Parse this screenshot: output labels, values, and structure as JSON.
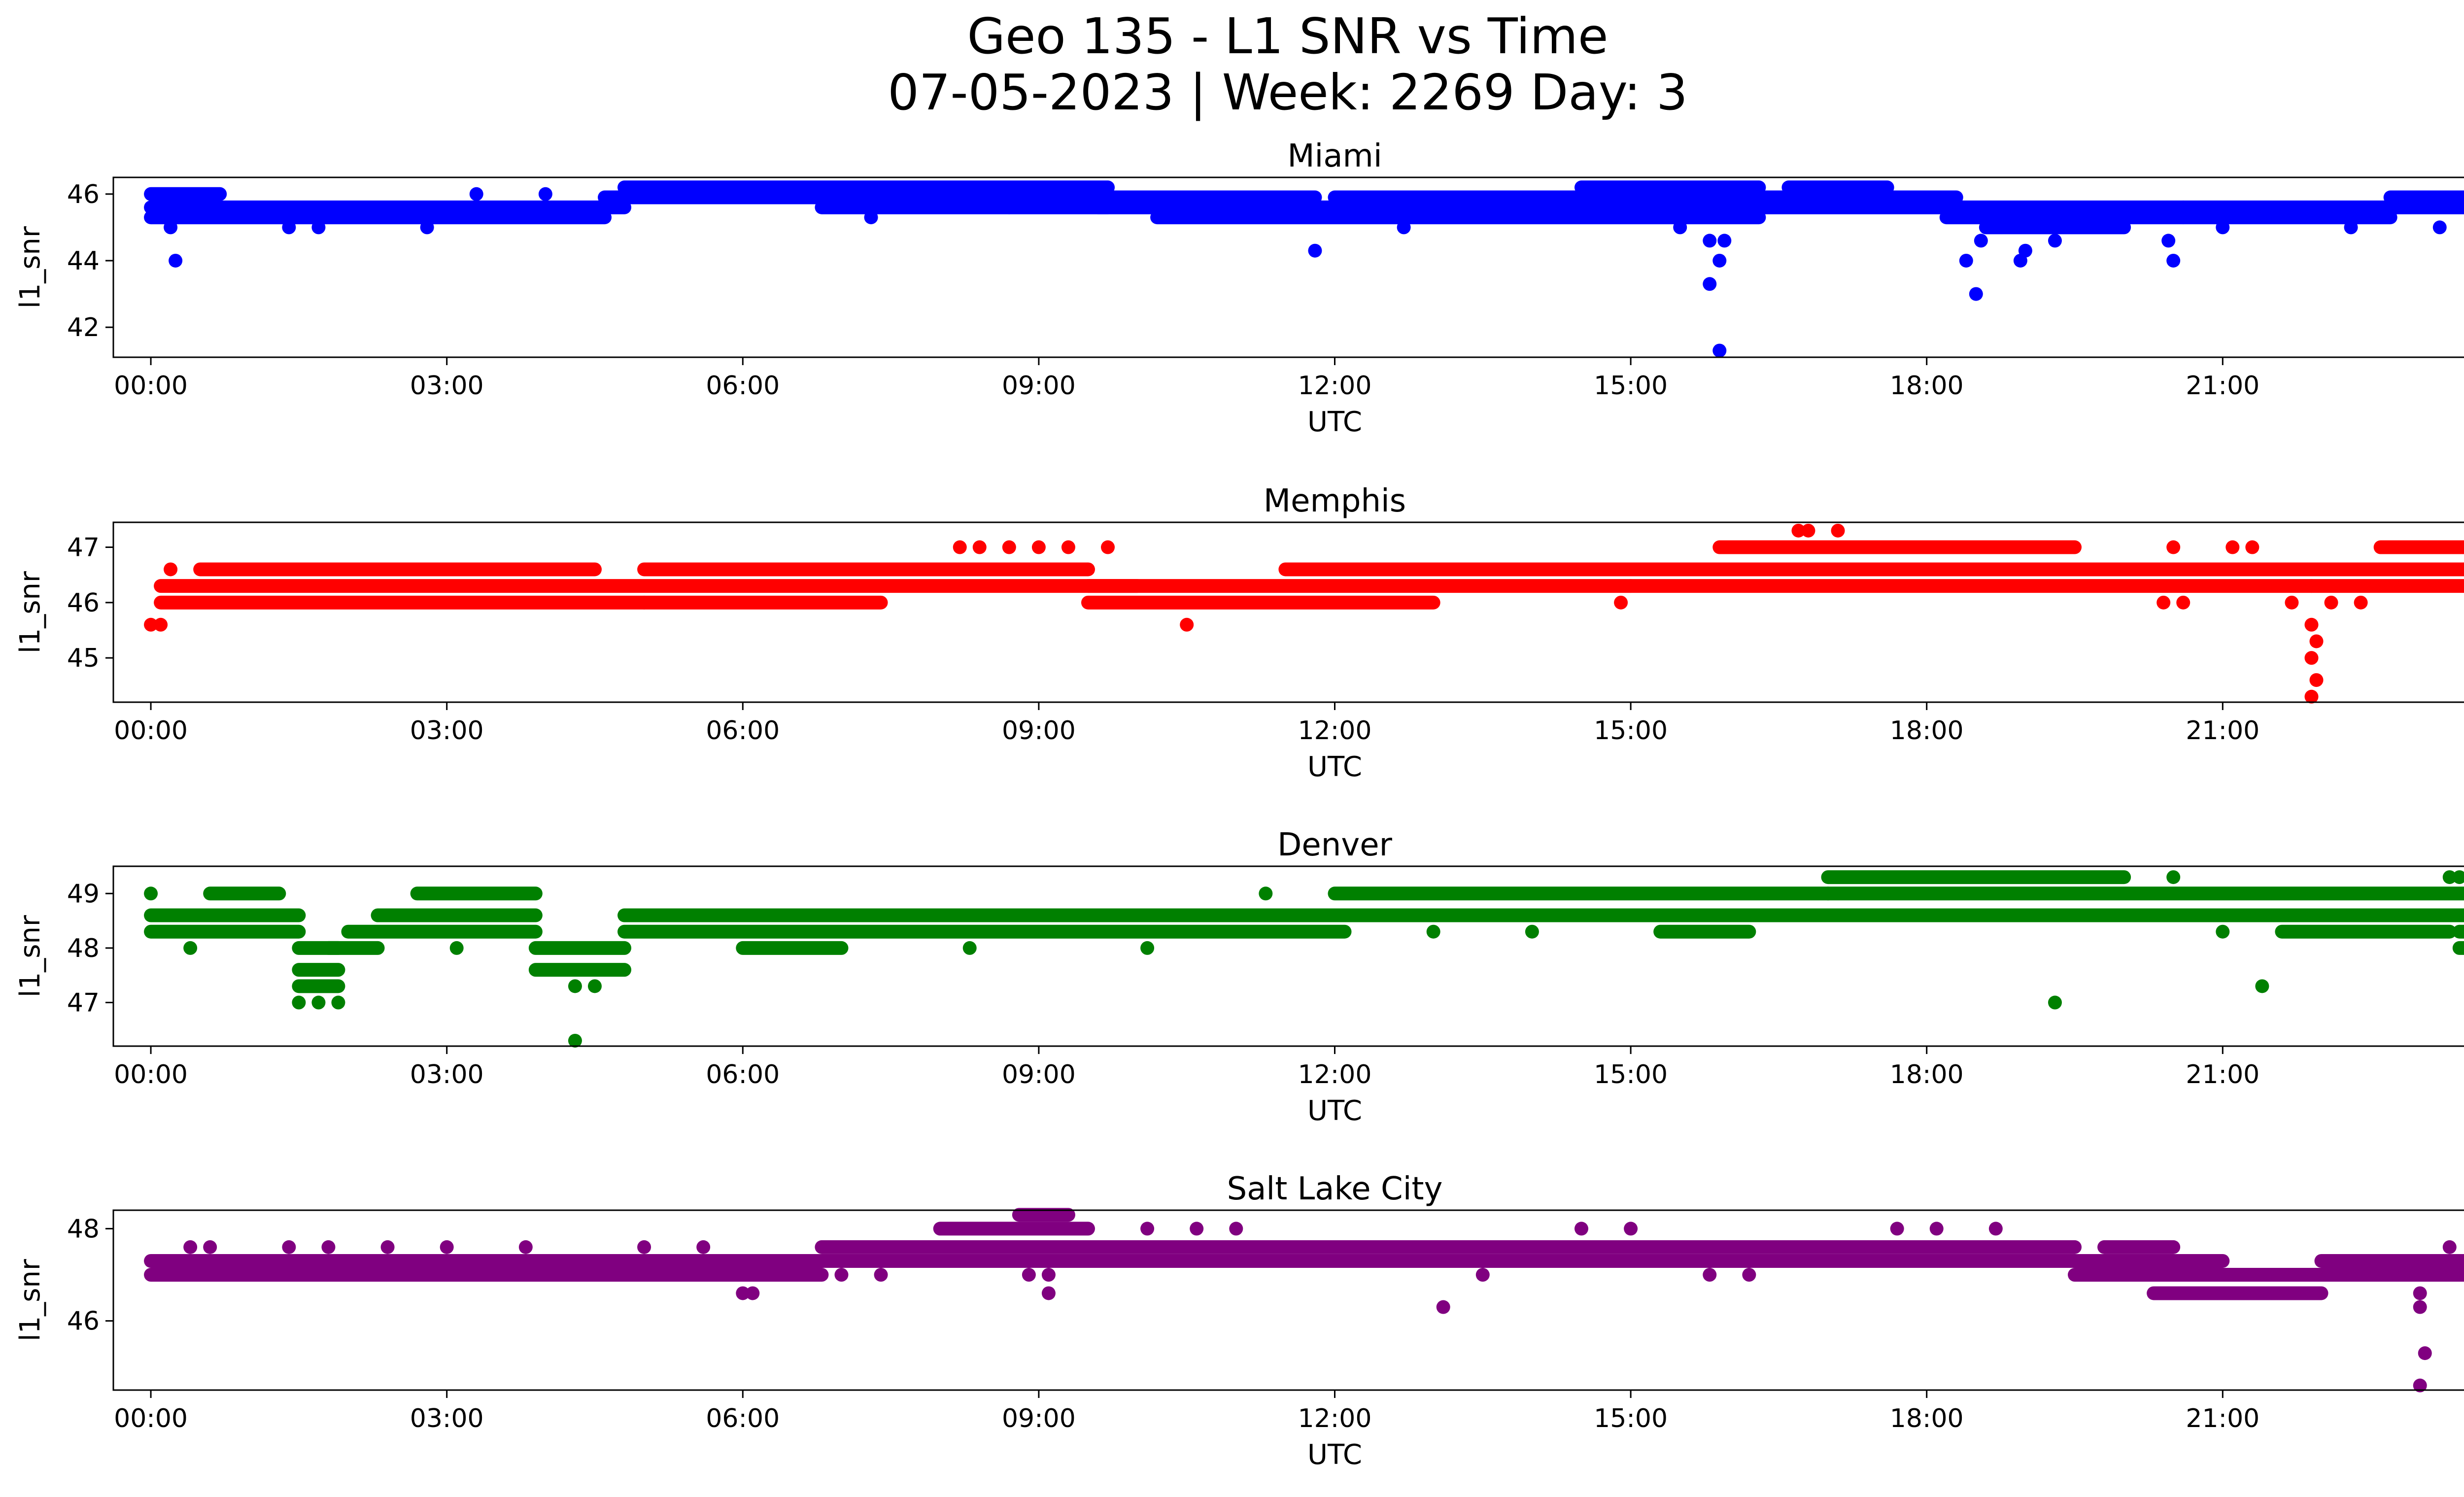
{
  "chart": {
    "title_line1": "Geo 135 - L1 SNR vs Time",
    "title_line2": "07-05-2023 | Week: 2269 Day: 3"
  },
  "chart_data": [
    {
      "type": "scatter",
      "title": "Miami",
      "xlabel": "UTC",
      "ylabel": "l1_snr",
      "color": "#0000ff",
      "xlim": [
        -0.38,
        24.38
      ],
      "ylim": [
        41.1,
        46.5
      ],
      "xticks": [
        "00:00",
        "03:00",
        "06:00",
        "09:00",
        "12:00",
        "15:00",
        "18:00",
        "21:00",
        "00:00"
      ],
      "yticks": [
        42,
        44,
        46
      ],
      "bands": [
        {
          "x0": 0.0,
          "x1": 4.6,
          "y": 45.3
        },
        {
          "x0": 0.0,
          "x1": 4.8,
          "y": 45.6
        },
        {
          "x0": 0.0,
          "x1": 0.7,
          "y": 46.0
        },
        {
          "x0": 4.6,
          "x1": 6.8,
          "y": 45.9
        },
        {
          "x0": 4.8,
          "x1": 9.7,
          "y": 46.2
        },
        {
          "x0": 4.8,
          "x1": 11.8,
          "y": 45.9
        },
        {
          "x0": 6.8,
          "x1": 9.7,
          "y": 45.6
        },
        {
          "x0": 9.6,
          "x1": 16.3,
          "y": 45.6
        },
        {
          "x0": 10.2,
          "x1": 16.3,
          "y": 45.3
        },
        {
          "x0": 12.0,
          "x1": 16.3,
          "y": 45.9
        },
        {
          "x0": 14.5,
          "x1": 16.3,
          "y": 46.2
        },
        {
          "x0": 16.3,
          "x1": 18.3,
          "y": 45.9
        },
        {
          "x0": 16.6,
          "x1": 17.6,
          "y": 46.2
        },
        {
          "x0": 16.3,
          "x1": 18.3,
          "y": 45.6
        },
        {
          "x0": 18.2,
          "x1": 20.6,
          "y": 45.6
        },
        {
          "x0": 18.2,
          "x1": 20.6,
          "y": 45.3
        },
        {
          "x0": 18.6,
          "x1": 20.0,
          "y": 45.0
        },
        {
          "x0": 20.6,
          "x1": 22.7,
          "y": 45.6
        },
        {
          "x0": 20.6,
          "x1": 22.7,
          "y": 45.3
        },
        {
          "x0": 22.7,
          "x1": 24.0,
          "y": 45.6
        },
        {
          "x0": 22.7,
          "x1": 24.0,
          "y": 45.9
        },
        {
          "x0": 23.6,
          "x1": 24.0,
          "y": 46.2
        }
      ],
      "points": [
        [
          0.25,
          44.0
        ],
        [
          0.2,
          45.0
        ],
        [
          1.4,
          45.0
        ],
        [
          1.7,
          45.0
        ],
        [
          2.8,
          45.0
        ],
        [
          3.3,
          46.0
        ],
        [
          4.0,
          46.0
        ],
        [
          8.7,
          45.6
        ],
        [
          7.3,
          45.3
        ],
        [
          11.8,
          44.3
        ],
        [
          12.7,
          45.0
        ],
        [
          15.8,
          44.6
        ],
        [
          15.8,
          43.3
        ],
        [
          15.9,
          44.0
        ],
        [
          15.95,
          44.6
        ],
        [
          15.9,
          41.3
        ],
        [
          15.5,
          45.0
        ],
        [
          18.4,
          44.0
        ],
        [
          18.55,
          44.6
        ],
        [
          18.5,
          43.0
        ],
        [
          18.95,
          44.0
        ],
        [
          19.0,
          44.3
        ],
        [
          20.5,
          44.0
        ],
        [
          20.45,
          44.6
        ],
        [
          21.0,
          45.0
        ],
        [
          22.3,
          45.0
        ],
        [
          23.2,
          45.0
        ],
        [
          19.3,
          44.6
        ]
      ]
    },
    {
      "type": "scatter",
      "title": "Memphis",
      "xlabel": "UTC",
      "ylabel": "l1_snr",
      "color": "#ff0000",
      "xlim": [
        -0.38,
        24.38
      ],
      "ylim": [
        44.2,
        47.45
      ],
      "xticks": [
        "00:00",
        "03:00",
        "06:00",
        "09:00",
        "12:00",
        "15:00",
        "18:00",
        "21:00",
        "00:00"
      ],
      "yticks": [
        45,
        46,
        47
      ],
      "bands": [
        {
          "x0": 0.1,
          "x1": 5.0,
          "y": 46.0
        },
        {
          "x0": 0.1,
          "x1": 10.0,
          "y": 46.3
        },
        {
          "x0": 0.5,
          "x1": 4.5,
          "y": 46.6
        },
        {
          "x0": 5.0,
          "x1": 7.4,
          "y": 46.0
        },
        {
          "x0": 5.0,
          "x1": 9.5,
          "y": 46.6
        },
        {
          "x0": 9.5,
          "x1": 13.0,
          "y": 46.0
        },
        {
          "x0": 9.5,
          "x1": 15.0,
          "y": 46.3
        },
        {
          "x0": 11.5,
          "x1": 16.2,
          "y": 46.6
        },
        {
          "x0": 15.0,
          "x1": 21.9,
          "y": 46.6
        },
        {
          "x0": 15.0,
          "x1": 21.9,
          "y": 46.3
        },
        {
          "x0": 15.9,
          "x1": 19.5,
          "y": 47.0
        },
        {
          "x0": 21.9,
          "x1": 24.0,
          "y": 46.6
        },
        {
          "x0": 21.9,
          "x1": 24.0,
          "y": 46.3
        },
        {
          "x0": 22.6,
          "x1": 24.0,
          "y": 47.0
        }
      ],
      "points": [
        [
          0.0,
          45.6
        ],
        [
          0.1,
          45.6
        ],
        [
          0.2,
          46.6
        ],
        [
          10.5,
          45.6
        ],
        [
          8.2,
          47.0
        ],
        [
          8.4,
          47.0
        ],
        [
          8.7,
          47.0
        ],
        [
          9.0,
          47.0
        ],
        [
          9.3,
          47.0
        ],
        [
          9.7,
          47.0
        ],
        [
          14.9,
          46.0
        ],
        [
          16.7,
          47.3
        ],
        [
          16.8,
          47.3
        ],
        [
          17.1,
          47.3
        ],
        [
          21.9,
          45.6
        ],
        [
          21.95,
          45.3
        ],
        [
          21.9,
          45.0
        ],
        [
          21.95,
          44.6
        ],
        [
          21.9,
          44.3
        ],
        [
          21.7,
          46.0
        ],
        [
          22.1,
          46.0
        ],
        [
          22.4,
          46.0
        ],
        [
          24.0,
          47.3
        ],
        [
          20.5,
          47.0
        ],
        [
          21.1,
          47.0
        ],
        [
          21.3,
          47.0
        ],
        [
          20.6,
          46.0
        ],
        [
          20.4,
          46.0
        ]
      ]
    },
    {
      "type": "scatter",
      "title": "Denver",
      "xlabel": "UTC",
      "ylabel": "l1_snr",
      "color": "#008000",
      "xlim": [
        -0.38,
        24.38
      ],
      "ylim": [
        46.2,
        49.5
      ],
      "xticks": [
        "00:00",
        "03:00",
        "06:00",
        "09:00",
        "12:00",
        "15:00",
        "18:00",
        "21:00",
        "00:00"
      ],
      "yticks": [
        47,
        48,
        49
      ],
      "bands": [
        {
          "x0": 0.0,
          "x1": 1.5,
          "y": 48.3
        },
        {
          "x0": 0.0,
          "x1": 1.5,
          "y": 48.6
        },
        {
          "x0": 0.6,
          "x1": 1.3,
          "y": 49.0
        },
        {
          "x0": 1.5,
          "x1": 1.9,
          "y": 47.3
        },
        {
          "x0": 1.5,
          "x1": 1.9,
          "y": 47.6
        },
        {
          "x0": 1.5,
          "x1": 1.9,
          "y": 48.0
        },
        {
          "x0": 1.8,
          "x1": 2.3,
          "y": 48.0
        },
        {
          "x0": 2.0,
          "x1": 3.9,
          "y": 48.3
        },
        {
          "x0": 2.3,
          "x1": 3.9,
          "y": 48.6
        },
        {
          "x0": 2.7,
          "x1": 3.9,
          "y": 49.0
        },
        {
          "x0": 3.9,
          "x1": 4.8,
          "y": 47.6
        },
        {
          "x0": 3.9,
          "x1": 4.8,
          "y": 48.0
        },
        {
          "x0": 4.8,
          "x1": 12.1,
          "y": 48.3
        },
        {
          "x0": 4.8,
          "x1": 17.0,
          "y": 48.6
        },
        {
          "x0": 6.0,
          "x1": 7.0,
          "y": 48.0
        },
        {
          "x0": 12.0,
          "x1": 17.0,
          "y": 49.0
        },
        {
          "x0": 15.3,
          "x1": 16.2,
          "y": 48.3
        },
        {
          "x0": 17.0,
          "x1": 20.0,
          "y": 49.3
        },
        {
          "x0": 17.0,
          "x1": 24.0,
          "y": 49.0
        },
        {
          "x0": 17.0,
          "x1": 24.0,
          "y": 48.6
        },
        {
          "x0": 21.6,
          "x1": 23.3,
          "y": 48.3
        },
        {
          "x0": 23.4,
          "x1": 23.9,
          "y": 48.0
        },
        {
          "x0": 23.4,
          "x1": 23.9,
          "y": 48.3
        }
      ],
      "points": [
        [
          0.0,
          49.0
        ],
        [
          0.4,
          48.0
        ],
        [
          1.5,
          47.0
        ],
        [
          1.7,
          47.0
        ],
        [
          1.9,
          47.0
        ],
        [
          3.1,
          48.0
        ],
        [
          4.3,
          47.3
        ],
        [
          4.5,
          47.3
        ],
        [
          4.3,
          46.3
        ],
        [
          8.3,
          48.0
        ],
        [
          10.1,
          48.0
        ],
        [
          13.0,
          48.3
        ],
        [
          14.0,
          48.3
        ],
        [
          11.3,
          49.0
        ],
        [
          19.3,
          47.0
        ],
        [
          21.4,
          47.3
        ],
        [
          21.0,
          48.3
        ],
        [
          23.3,
          49.3
        ],
        [
          23.4,
          49.3
        ],
        [
          24.0,
          49.0
        ],
        [
          20.5,
          49.3
        ],
        [
          18.0,
          48.6
        ],
        [
          18.8,
          48.6
        ]
      ]
    },
    {
      "type": "scatter",
      "title": "Salt Lake City",
      "xlabel": "UTC",
      "ylabel": "l1_snr",
      "color": "#800080",
      "xlim": [
        -0.38,
        24.38
      ],
      "ylim": [
        44.5,
        48.4
      ],
      "xticks": [
        "00:00",
        "03:00",
        "06:00",
        "09:00",
        "12:00",
        "15:00",
        "18:00",
        "21:00",
        "00:00"
      ],
      "yticks": [
        46,
        48
      ],
      "bands": [
        {
          "x0": 0.0,
          "x1": 6.8,
          "y": 47.0
        },
        {
          "x0": 0.0,
          "x1": 6.8,
          "y": 47.3
        },
        {
          "x0": 6.8,
          "x1": 8.5,
          "y": 47.3
        },
        {
          "x0": 6.8,
          "x1": 19.5,
          "y": 47.6
        },
        {
          "x0": 8.5,
          "x1": 19.5,
          "y": 47.3
        },
        {
          "x0": 8.0,
          "x1": 9.5,
          "y": 48.0
        },
        {
          "x0": 8.8,
          "x1": 9.3,
          "y": 48.3
        },
        {
          "x0": 19.5,
          "x1": 21.0,
          "y": 47.3
        },
        {
          "x0": 19.5,
          "x1": 21.0,
          "y": 47.0
        },
        {
          "x0": 20.3,
          "x1": 22.0,
          "y": 46.6
        },
        {
          "x0": 20.9,
          "x1": 22.0,
          "y": 47.0
        },
        {
          "x0": 22.0,
          "x1": 24.0,
          "y": 47.0
        },
        {
          "x0": 22.0,
          "x1": 24.0,
          "y": 47.3
        },
        {
          "x0": 19.8,
          "x1": 20.5,
          "y": 47.6
        }
      ],
      "points": [
        [
          0.4,
          47.6
        ],
        [
          0.6,
          47.6
        ],
        [
          1.4,
          47.6
        ],
        [
          1.8,
          47.6
        ],
        [
          2.4,
          47.6
        ],
        [
          3.0,
          47.6
        ],
        [
          3.8,
          47.6
        ],
        [
          5.0,
          47.6
        ],
        [
          5.6,
          47.6
        ],
        [
          6.0,
          46.6
        ],
        [
          6.1,
          46.6
        ],
        [
          9.1,
          46.6
        ],
        [
          10.1,
          48.0
        ],
        [
          10.6,
          48.0
        ],
        [
          11.0,
          48.0
        ],
        [
          13.1,
          46.3
        ],
        [
          13.5,
          47.0
        ],
        [
          14.5,
          48.0
        ],
        [
          15.0,
          48.0
        ],
        [
          17.7,
          48.0
        ],
        [
          18.1,
          48.0
        ],
        [
          18.7,
          48.0
        ],
        [
          23.0,
          46.6
        ],
        [
          23.0,
          46.3
        ],
        [
          23.05,
          45.3
        ],
        [
          23.0,
          44.6
        ],
        [
          23.3,
          47.6
        ],
        [
          24.0,
          47.6
        ],
        [
          15.8,
          47.0
        ],
        [
          16.2,
          47.0
        ],
        [
          7.4,
          47.0
        ],
        [
          7.0,
          47.0
        ],
        [
          8.9,
          47.0
        ],
        [
          9.1,
          47.0
        ]
      ]
    }
  ]
}
